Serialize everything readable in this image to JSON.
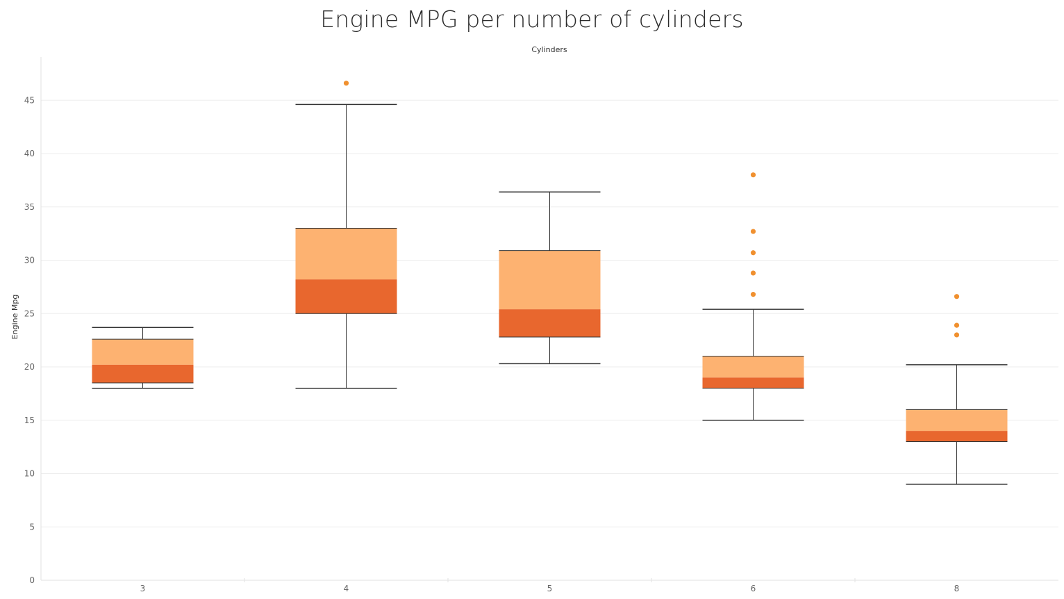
{
  "chart_data": {
    "type": "box",
    "title": "Engine MPG per number of cylinders",
    "xlabel": "Cylinders",
    "ylabel": "Engine Mpg",
    "categories": [
      "3",
      "4",
      "5",
      "6",
      "8"
    ],
    "ylim": [
      0,
      49
    ],
    "yticks": [
      0,
      5,
      10,
      15,
      20,
      25,
      30,
      35,
      40,
      45
    ],
    "grid": true,
    "x_axis_title_position": "top",
    "boxes": [
      {
        "category": "3",
        "whisker_low": 18.0,
        "q1": 18.5,
        "median": 20.2,
        "q3": 22.6,
        "whisker_high": 23.7,
        "outliers": []
      },
      {
        "category": "4",
        "whisker_low": 18.0,
        "q1": 25.0,
        "median": 28.2,
        "q3": 33.0,
        "whisker_high": 44.6,
        "outliers": [
          46.6
        ]
      },
      {
        "category": "5",
        "whisker_low": 20.3,
        "q1": 22.8,
        "median": 25.4,
        "q3": 30.9,
        "whisker_high": 36.4,
        "outliers": []
      },
      {
        "category": "6",
        "whisker_low": 15.0,
        "q1": 18.0,
        "median": 19.0,
        "q3": 21.0,
        "whisker_high": 25.4,
        "outliers": [
          38.0,
          32.7,
          30.7,
          28.8,
          26.8
        ]
      },
      {
        "category": "8",
        "whisker_low": 9.0,
        "q1": 13.0,
        "median": 14.0,
        "q3": 16.0,
        "whisker_high": 20.2,
        "outliers": [
          26.6,
          23.9,
          23.0
        ]
      }
    ],
    "colors": {
      "upper_box": "#fdb271",
      "lower_box": "#e8672e",
      "outlier": "#f0902f",
      "whisker": "#333333",
      "grid": "#eeeeee",
      "axis": "#e2e2e2"
    }
  }
}
